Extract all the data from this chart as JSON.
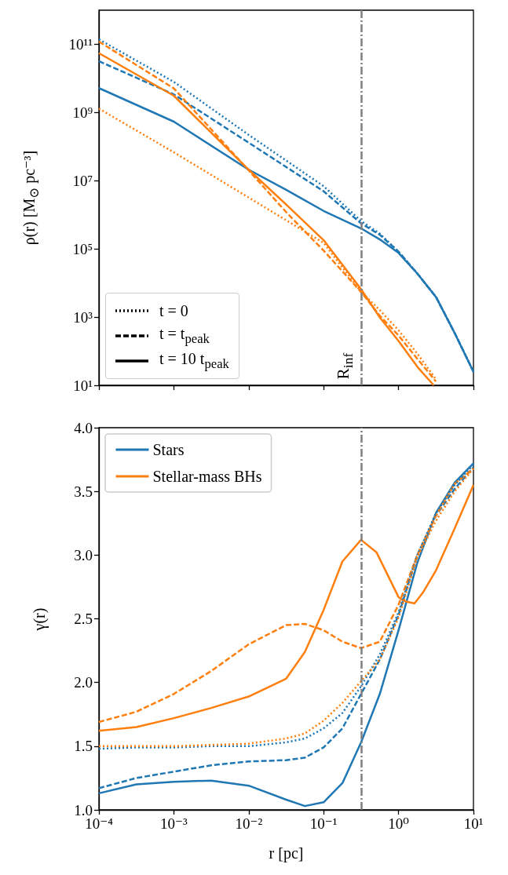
{
  "chart_data": [
    {
      "type": "line",
      "ylabel": "ρ(r) [M$_{⊙}$ pc⁻³]",
      "log": "xy",
      "xlim": [
        0.0001,
        10
      ],
      "ylim": [
        10,
        1000000000000.0
      ],
      "xticks": [
        {
          "value": 0.0001,
          "label": null
        },
        {
          "value": 0.001,
          "label": null
        },
        {
          "value": 0.01,
          "label": null
        },
        {
          "value": 0.1,
          "label": null
        },
        {
          "value": 1,
          "label": null
        },
        {
          "value": 10,
          "label": null
        }
      ],
      "yticks": [
        {
          "value": 10,
          "label": "10¹"
        },
        {
          "value": 1000,
          "label": "10³"
        },
        {
          "value": 100000,
          "label": "10⁵"
        },
        {
          "value": 10000000,
          "label": "10⁷"
        },
        {
          "value": 1000000000,
          "label": "10⁹"
        },
        {
          "value": 100000000000,
          "label": "10¹¹"
        }
      ],
      "tick_labels": "y",
      "grid": false,
      "marker": "none",
      "annotations": [
        "t = 0",
        "t = t$_{peak}$",
        "t = 10 t$_{peak}$"
      ],
      "ref_lines": [
        {
          "axis": "x",
          "value": 0.32,
          "label": "R$_{inf}$",
          "color": "#7f7f7f"
        }
      ],
      "series": [
        {
          "color": "#1f77b4",
          "line_style": "dotted",
          "x": [
            0.0001,
            0.001,
            0.01,
            0.1,
            0.316,
            0.562,
            1,
            1.78,
            3.16,
            5.62,
            10
          ],
          "values": [
            140000000000.0,
            7900000000.0,
            220000000.0,
            6900000.0,
            660000.0,
            280000.0,
            83000.0,
            19000.0,
            3900,
            340,
            25
          ]
        },
        {
          "color": "#ff7f0e",
          "line_style": "dotted",
          "x": [
            0.0001,
            0.001,
            0.01,
            0.1,
            0.316,
            0.562,
            1,
            1.78,
            3.16
          ],
          "values": [
            1300000000.0,
            68000000.0,
            3200000.0,
            150000.0,
            5500,
            1600,
            410,
            85,
            15
          ]
        },
        {
          "color": "#1f77b4",
          "line_style": "dashed",
          "x": [
            0.0001,
            0.001,
            0.01,
            0.1,
            0.316,
            0.562,
            1,
            1.78,
            3.16,
            5.62,
            10
          ],
          "values": [
            32000000000.0,
            3400000000.0,
            130000000.0,
            4900000.0,
            560000.0,
            260000.0,
            83000.0,
            19000.0,
            3900,
            340,
            25
          ]
        },
        {
          "color": "#ff7f0e",
          "line_style": "dashed",
          "x": [
            0.0001,
            0.001,
            0.01,
            0.0316,
            0.1,
            0.316,
            0.562,
            1,
            1.78,
            3.16
          ],
          "values": [
            120000000000.0,
            5100000000.0,
            20000000.0,
            1200000.0,
            89000.0,
            5500,
            1100,
            290,
            60,
            13
          ]
        },
        {
          "color": "#1f77b4",
          "line_style": "solid",
          "x": [
            0.0001,
            0.001,
            0.01,
            0.0316,
            0.1,
            0.316,
            0.562,
            1,
            1.78,
            3.16,
            5.62,
            10
          ],
          "values": [
            5200000000.0,
            540000000.0,
            21000000.0,
            5400000.0,
            1300000.0,
            400000.0,
            190000.0,
            76000.0,
            19000.0,
            3900,
            340,
            25
          ]
        },
        {
          "color": "#ff7f0e",
          "line_style": "solid",
          "x": [
            0.0001,
            0.001,
            0.01,
            0.0316,
            0.1,
            0.316,
            0.562,
            1,
            1.78,
            2.95
          ],
          "values": [
            55000000000.0,
            3100000000.0,
            21000000.0,
            2000000.0,
            180000.0,
            6600,
            980,
            200,
            35,
            10
          ]
        }
      ]
    },
    {
      "type": "line",
      "xlabel": "r [pc]",
      "ylabel": "γ(r)",
      "log": "x",
      "xlim": [
        0.0001,
        10
      ],
      "ylim": [
        1,
        4
      ],
      "xticks": [
        {
          "value": 0.0001,
          "label": "10⁻⁴"
        },
        {
          "value": 0.001,
          "label": "10⁻³"
        },
        {
          "value": 0.01,
          "label": "10⁻²"
        },
        {
          "value": 0.1,
          "label": "10⁻¹"
        },
        {
          "value": 1,
          "label": "10⁰"
        },
        {
          "value": 10,
          "label": "10¹"
        }
      ],
      "yticks": [
        {
          "value": 1,
          "label": "1.0"
        },
        {
          "value": 1.5,
          "label": "1.5"
        },
        {
          "value": 2,
          "label": "2.0"
        },
        {
          "value": 2.5,
          "label": "2.5"
        },
        {
          "value": 3,
          "label": "3.0"
        },
        {
          "value": 3.5,
          "label": "3.5"
        },
        {
          "value": 4,
          "label": "4.0"
        }
      ],
      "grid": false,
      "legend": "top left",
      "marker": "none",
      "ref_lines": [
        {
          "axis": "x",
          "value": 0.32,
          "color": "#7f7f7f"
        }
      ],
      "x": [
        0.0001,
        0.000316,
        0.001,
        0.00316,
        0.01,
        0.0316,
        0.0562,
        0.1,
        0.178,
        0.316,
        0.562,
        1,
        1.78,
        3.16,
        5.62,
        10
      ],
      "series": [
        {
          "name": "Stars",
          "color": "#1f77b4",
          "line_style": "solid",
          "values": [
            1.13,
            1.2,
            1.22,
            1.23,
            1.19,
            1.08,
            1.03,
            1.06,
            1.21,
            1.53,
            1.91,
            2.41,
            2.94,
            3.33,
            3.57,
            3.72
          ]
        },
        {
          "name": "Stellar-mass BHs",
          "color": "#ff7f0e",
          "line_style": "solid",
          "x": [
            0.0001,
            0.000316,
            0.001,
            0.00316,
            0.01,
            0.0316,
            0.0562,
            0.1,
            0.178,
            0.316,
            0.51,
            1,
            1.18,
            1.63,
            2.14,
            3.16,
            5.62,
            10
          ],
          "values": [
            1.62,
            1.65,
            1.72,
            1.8,
            1.89,
            2.03,
            2.24,
            2.57,
            2.95,
            3.12,
            3.02,
            2.67,
            2.64,
            2.62,
            2.71,
            2.88,
            3.21,
            3.55
          ]
        },
        {
          "color": "#1f77b4",
          "line_style": "dashed",
          "values": [
            1.17,
            1.25,
            1.3,
            1.35,
            1.38,
            1.39,
            1.41,
            1.49,
            1.64,
            1.91,
            2.18,
            2.53,
            3.0,
            3.31,
            3.52,
            3.69
          ]
        },
        {
          "color": "#ff7f0e",
          "line_style": "dashed",
          "values": [
            1.69,
            1.77,
            1.91,
            2.09,
            2.3,
            2.45,
            2.46,
            2.41,
            2.32,
            2.27,
            2.32,
            2.61,
            3.0,
            3.31,
            3.56,
            3.68
          ]
        },
        {
          "color": "#1f77b4",
          "line_style": "dotted",
          "values": [
            1.48,
            1.49,
            1.49,
            1.5,
            1.5,
            1.53,
            1.56,
            1.64,
            1.76,
            1.97,
            2.22,
            2.55,
            3.0,
            3.33,
            3.55,
            3.71
          ]
        },
        {
          "color": "#ff7f0e",
          "line_style": "dotted",
          "values": [
            1.5,
            1.5,
            1.5,
            1.51,
            1.52,
            1.56,
            1.6,
            1.7,
            1.84,
            2.01,
            2.18,
            2.51,
            2.98,
            3.27,
            3.5,
            3.68
          ]
        }
      ]
    }
  ]
}
